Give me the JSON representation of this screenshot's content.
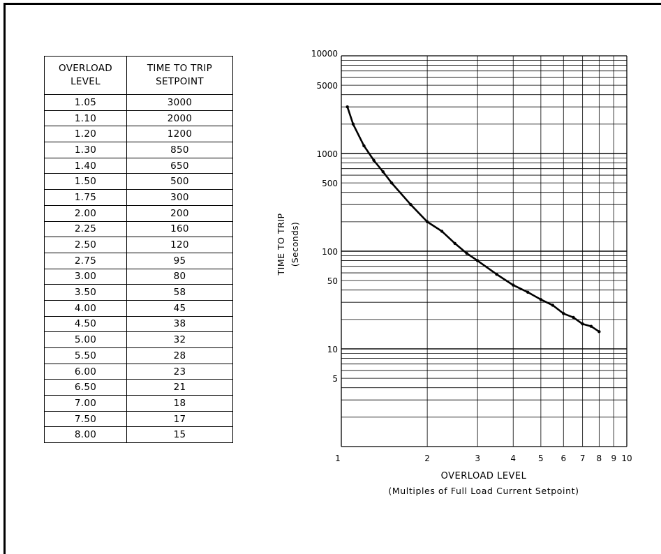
{
  "table": {
    "headers": {
      "col1_line1": "OVERLOAD",
      "col1_line2": "LEVEL",
      "col2_line1": "TIME TO TRIP",
      "col2_line2": "SETPOINT"
    },
    "rows": [
      [
        "1.05",
        "3000"
      ],
      [
        "1.10",
        "2000"
      ],
      [
        "1.20",
        "1200"
      ],
      [
        "1.30",
        "850"
      ],
      [
        "1.40",
        "650"
      ],
      [
        "1.50",
        "500"
      ],
      [
        "1.75",
        "300"
      ],
      [
        "2.00",
        "200"
      ],
      [
        "2.25",
        "160"
      ],
      [
        "2.50",
        "120"
      ],
      [
        "2.75",
        "95"
      ],
      [
        "3.00",
        "80"
      ],
      [
        "3.50",
        "58"
      ],
      [
        "4.00",
        "45"
      ],
      [
        "4.50",
        "38"
      ],
      [
        "5.00",
        "32"
      ],
      [
        "5.50",
        "28"
      ],
      [
        "6.00",
        "23"
      ],
      [
        "6.50",
        "21"
      ],
      [
        "7.00",
        "18"
      ],
      [
        "7.50",
        "17"
      ],
      [
        "8.00",
        "15"
      ]
    ]
  },
  "chart_data": {
    "type": "line",
    "xscale": "log",
    "yscale": "log",
    "xlim": [
      1,
      10
    ],
    "ylim": [
      1,
      10000
    ],
    "xlabel": "OVERLOAD LEVEL",
    "xlabel_sub": "(Multiples of Full Load Current Setpoint)",
    "ylabel": "TIME TO TRIP",
    "ylabel_sub": "(Seconds)",
    "x_ticks": [
      1,
      2,
      3,
      4,
      5,
      6,
      7,
      8,
      9,
      10
    ],
    "x_tick_labels": [
      "1",
      "2",
      "3",
      "4",
      "5",
      "6",
      "7",
      "8",
      "9",
      "10"
    ],
    "y_ticks": [
      10000,
      5000,
      1000,
      500,
      100,
      50,
      10,
      5
    ],
    "y_tick_labels": [
      "10000",
      "5000",
      "1000",
      "500",
      "100",
      "50",
      "10",
      "5"
    ],
    "grid": true,
    "series": [
      {
        "x": [
          1.05,
          1.1,
          1.2,
          1.3,
          1.4,
          1.5,
          1.75,
          2.0,
          2.25,
          2.5,
          2.75,
          3.0,
          3.5,
          4.0,
          4.5,
          5.0,
          5.5,
          6.0,
          6.5,
          7.0,
          7.5,
          8.0
        ],
        "y": [
          3000,
          2000,
          1200,
          850,
          650,
          500,
          300,
          200,
          160,
          120,
          95,
          80,
          58,
          45,
          38,
          32,
          28,
          23,
          21,
          18,
          17,
          15
        ]
      }
    ]
  }
}
